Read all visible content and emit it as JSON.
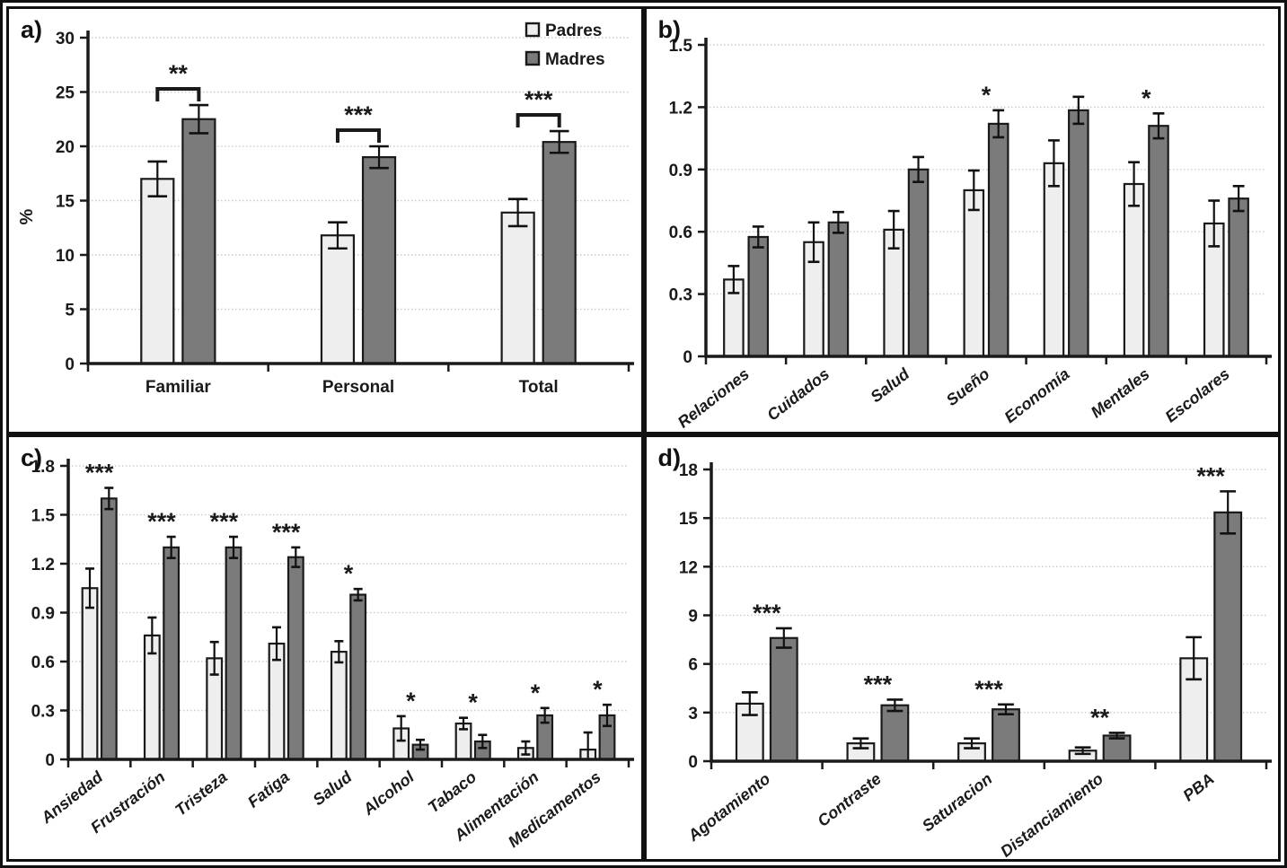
{
  "colors": {
    "padres_fill": "#eeeeee",
    "madres_fill": "#7b7b7b",
    "bar_border": "#1a1a1a",
    "axis": "#1a1a1a",
    "grid": "#cccccc",
    "error_bar": "#111111",
    "background": "#ffffff",
    "text": "#1a1a1a"
  },
  "legend": {
    "items": [
      "Padres",
      "Madres"
    ]
  },
  "chart_data": [
    {
      "id": "a",
      "panel_label": "a)",
      "type": "bar",
      "ylabel": "%",
      "ylim": [
        0,
        30
      ],
      "ytick_step": 5,
      "ytick_labels": [
        "0",
        "5",
        "10",
        "15",
        "20",
        "25",
        "30"
      ],
      "categories": [
        "Familiar",
        "Personal",
        "Total"
      ],
      "series": [
        {
          "name": "Padres",
          "values": [
            17.0,
            11.8,
            13.9
          ],
          "errors": [
            1.6,
            1.2,
            1.25
          ]
        },
        {
          "name": "Madres",
          "values": [
            22.5,
            19.0,
            20.4
          ],
          "errors": [
            1.3,
            1.0,
            1.0
          ]
        }
      ],
      "sig": [
        "**",
        "***",
        "***"
      ],
      "sig_style": "bracket",
      "grid": true,
      "x_label_rotated": false,
      "show_legend": true,
      "legend_position": "top-right"
    },
    {
      "id": "b",
      "panel_label": "b)",
      "type": "bar",
      "ylabel": "",
      "ylim": [
        0,
        1.5
      ],
      "ytick_step": 0.3,
      "ytick_labels": [
        "0",
        "0.3",
        "0.6",
        "0.9",
        "1.2",
        "1.5"
      ],
      "categories": [
        "Relaciones",
        "Cuidados",
        "Salud",
        "Sueño",
        "Economía",
        "Mentales",
        "Escolares"
      ],
      "series": [
        {
          "name": "Padres",
          "values": [
            0.37,
            0.55,
            0.61,
            0.8,
            0.93,
            0.83,
            0.64
          ],
          "errors": [
            0.065,
            0.095,
            0.09,
            0.095,
            0.11,
            0.105,
            0.11
          ]
        },
        {
          "name": "Madres",
          "values": [
            0.575,
            0.645,
            0.9,
            1.12,
            1.185,
            1.11,
            0.76
          ],
          "errors": [
            0.05,
            0.05,
            0.06,
            0.065,
            0.065,
            0.06,
            0.06
          ]
        }
      ],
      "sig": [
        null,
        null,
        null,
        "*",
        null,
        "*",
        null
      ],
      "sig_style": "star",
      "grid": true,
      "x_label_rotated": true,
      "show_legend": false,
      "legend_position": null
    },
    {
      "id": "c",
      "panel_label": "c)",
      "type": "bar",
      "ylabel": "",
      "ylim": [
        0,
        1.8
      ],
      "ytick_step": 0.3,
      "ytick_labels": [
        "0",
        "0.3",
        "0.6",
        "0.9",
        "1.2",
        "1.5",
        "1.8"
      ],
      "categories": [
        "Ansiedad",
        "Frustración",
        "Tristeza",
        "Fatiga",
        "Salud",
        "Alcohol",
        "Tabaco",
        "Alimentación",
        "Medicamentos"
      ],
      "series": [
        {
          "name": "Padres",
          "values": [
            1.05,
            0.76,
            0.62,
            0.71,
            0.66,
            0.19,
            0.22,
            0.07,
            0.06
          ],
          "errors": [
            0.12,
            0.11,
            0.1,
            0.1,
            0.065,
            0.075,
            0.035,
            0.04,
            0.105
          ]
        },
        {
          "name": "Madres",
          "values": [
            1.6,
            1.3,
            1.3,
            1.24,
            1.01,
            0.09,
            0.11,
            0.27,
            0.27
          ],
          "errors": [
            0.065,
            0.065,
            0.065,
            0.06,
            0.035,
            0.03,
            0.04,
            0.045,
            0.065
          ]
        }
      ],
      "sig": [
        "***",
        "***",
        "***",
        "***",
        "*",
        "*",
        "*",
        "*",
        "*"
      ],
      "sig_style": "star",
      "grid": true,
      "x_label_rotated": true,
      "show_legend": false,
      "legend_position": null
    },
    {
      "id": "d",
      "panel_label": "d)",
      "type": "bar",
      "ylabel": "",
      "ylim": [
        0,
        18
      ],
      "ytick_step": 3,
      "ytick_labels": [
        "0",
        "3",
        "6",
        "9",
        "12",
        "15",
        "18"
      ],
      "categories": [
        "Agotamiento",
        "Contraste",
        "Saturacion",
        "Distanciamiento",
        "PBA"
      ],
      "series": [
        {
          "name": "Padres",
          "values": [
            3.55,
            1.1,
            1.1,
            0.65,
            6.35
          ],
          "errors": [
            0.7,
            0.3,
            0.3,
            0.2,
            1.3
          ]
        },
        {
          "name": "Madres",
          "values": [
            7.6,
            3.45,
            3.2,
            1.58,
            15.35
          ],
          "errors": [
            0.6,
            0.35,
            0.3,
            0.17,
            1.3
          ]
        }
      ],
      "sig": [
        "***",
        "***",
        "***",
        "**",
        "***"
      ],
      "sig_style": "star",
      "grid": true,
      "x_label_rotated": true,
      "show_legend": false,
      "legend_position": null
    }
  ]
}
